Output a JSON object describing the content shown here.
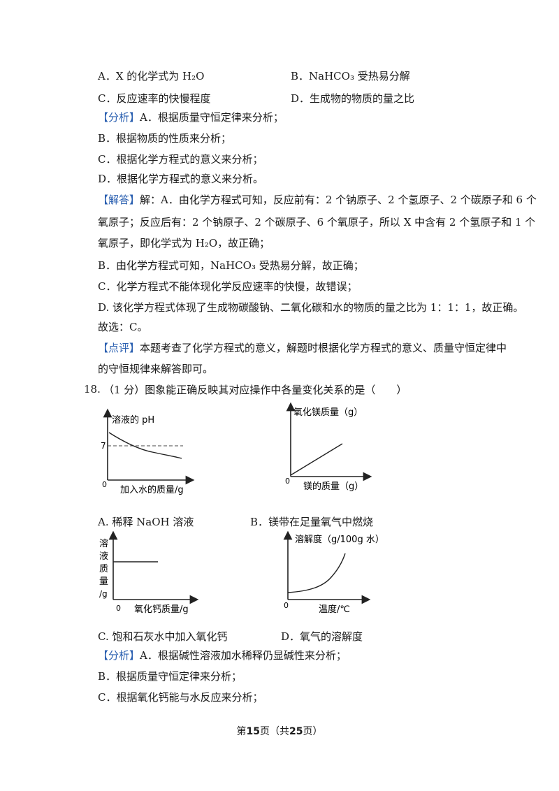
{
  "options_q17": {
    "a": "A．X 的化学式为 H₂O",
    "b": "B．NaHCO₃ 受热易分解",
    "c": "C．反应速率的快慢程度",
    "d": "D．生成物的物质的量之比"
  },
  "analysis17": {
    "tag": "【分析】",
    "l1": "A．根据质量守恒定律来分析；",
    "l2": "B．根据物质的性质来分析；",
    "l3": "C．根据化学方程式的意义来分析；",
    "l4": "D．根据化学方程式的意义来分析。"
  },
  "answer17": {
    "tag": "【解答】",
    "l1": "解：A．由化学方程式可知，反应前有：2 个钠原子、2 个氢原子、2 个碳原子和 6 个",
    "l2": "氧原子；反应后有：2 个钠原子、2 个碳原子、6 个氧原子，所以 X 中含有 2 个氢原子和 1 个",
    "l3": "氧原子，即化学式为 H₂O，故正确；",
    "l4": "B．由化学方程式可知，NaHCO₃ 受热易分解，故正确；",
    "l5": "C．化学方程式不能体现化学反应速率的快慢，故错误；",
    "l6": "D. 该化学方程式体现了生成物碳酸钠、二氧化碳和水的物质的量之比为 1：1：1，故正确。",
    "l7": "故选：C。"
  },
  "comment17": {
    "tag": "【点评】",
    "l1": "本题考查了化学方程式的意义，解题时根据化学方程式的意义、质量守恒定律中",
    "l2": "的守恒规律来解答即可。"
  },
  "q18": {
    "num": "18.",
    "stem": "（1 分）图象能正确反映其对应操作中各量变化关系的是（　　）"
  },
  "graphA": {
    "ylabel": "溶液的 pH",
    "xlabel": "加入水的质量/g",
    "origin": "0",
    "mark": "7",
    "caption": "A. 稀释 NaOH 溶液"
  },
  "graphB": {
    "ylabel": "氧化镁质量（g）",
    "xlabel": "镁的质量（g）",
    "origin": "0",
    "caption": "B．镁带在足量氧气中燃烧"
  },
  "graphC": {
    "ylabel1": "溶",
    "ylabel2": "液",
    "ylabel3": "质",
    "ylabel4": "量",
    "ylabel5": "/g",
    "xlabel": "氧化钙质量/g",
    "origin": "0",
    "caption": "C. 饱和石灰水中加入氧化钙"
  },
  "graphD": {
    "ylabel": "溶解度（g/100g 水）",
    "xlabel": "温度/℃",
    "origin": "0",
    "caption": "D．氧气的溶解度"
  },
  "analysis18": {
    "tag": "【分析】",
    "l1": "A．根据碱性溶液加水稀释仍显碱性来分析；",
    "l2": "B．根据质量守恒定律来分析；",
    "l3": "C．根据氧化钙能与水反应来分析；"
  },
  "footer": {
    "pre": "第",
    "page": "15",
    "mid": "页（共",
    "total": "25",
    "post": "页）"
  }
}
